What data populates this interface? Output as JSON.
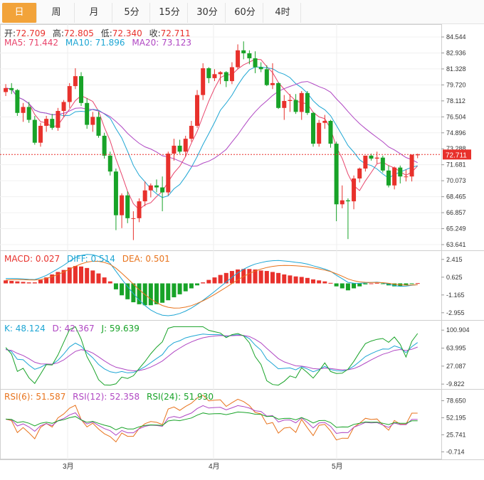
{
  "tabs": [
    "日",
    "周",
    "月",
    "5分",
    "15分",
    "30分",
    "60分",
    "4时"
  ],
  "active_tab": 0,
  "ohlc": {
    "open_label": "开:",
    "open": "72.709",
    "high_label": "高:",
    "high": "72.805",
    "low_label": "低:",
    "low": "72.340",
    "close_label": "收:",
    "close": "72.711"
  },
  "ma": {
    "ma5": "MA5: 71.442",
    "ma10": "MA10: 71.896",
    "ma20": "MA20: 73.123"
  },
  "macd_legend": {
    "macd": "MACD: 0.027",
    "diff": "DIFF: 0.514",
    "dea": "DEA: 0.501"
  },
  "kdj_legend": {
    "k": "K: 48.124",
    "d": "D: 42.367",
    "j": "J: 59.639"
  },
  "rsi_legend": {
    "r6": "RSI(6): 51.587",
    "r12": "RSI(12): 52.358",
    "r24": "RSI(24): 51.930"
  },
  "colors": {
    "up": "#e8312c",
    "down": "#18a328",
    "ma5": "#e8456c",
    "ma10": "#1ea6d4",
    "ma20": "#b047c3",
    "accent": "#f2a33a"
  },
  "chart_data": [
    {
      "type": "candlestick",
      "ylim": [
        63.641,
        84.544
      ],
      "y_ticks": [
        "84.544",
        "82.936",
        "81.328",
        "79.720",
        "78.112",
        "76.504",
        "74.896",
        "73.288",
        "71.681",
        "70.073",
        "68.465",
        "66.857",
        "65.249",
        "63.641"
      ],
      "x_labels": [
        "3月",
        "4月",
        "5月"
      ],
      "current_price": "72.711",
      "candles": [
        [
          79.0,
          79.8,
          78.6,
          79.4
        ],
        [
          79.4,
          79.9,
          78.8,
          79.2
        ],
        [
          79.2,
          79.3,
          76.6,
          76.9
        ],
        [
          76.9,
          77.9,
          76.0,
          77.5
        ],
        [
          77.5,
          78.0,
          75.9,
          76.2
        ],
        [
          76.2,
          76.6,
          73.7,
          73.9
        ],
        [
          73.9,
          75.9,
          73.5,
          75.6
        ],
        [
          75.6,
          76.6,
          75.0,
          76.3
        ],
        [
          76.3,
          76.8,
          75.2,
          75.4
        ],
        [
          75.4,
          77.4,
          75.1,
          77.1
        ],
        [
          77.1,
          78.2,
          76.5,
          78.0
        ],
        [
          78.0,
          79.9,
          77.4,
          79.6
        ],
        [
          79.6,
          81.4,
          79.3,
          80.6
        ],
        [
          80.6,
          81.0,
          77.6,
          77.9
        ],
        [
          77.9,
          78.4,
          75.3,
          75.7
        ],
        [
          75.7,
          77.0,
          75.0,
          76.5
        ],
        [
          76.5,
          77.0,
          74.4,
          74.6
        ],
        [
          74.6,
          74.9,
          72.3,
          72.6
        ],
        [
          72.6,
          73.0,
          70.6,
          71.0
        ],
        [
          71.0,
          71.3,
          65.1,
          66.6
        ],
        [
          66.6,
          68.8,
          65.3,
          68.6
        ],
        [
          68.6,
          69.0,
          65.8,
          66.3
        ],
        [
          66.3,
          67.0,
          64.1,
          66.3
        ],
        [
          66.3,
          68.3,
          65.9,
          68.0
        ],
        [
          68.0,
          70.0,
          67.5,
          69.1
        ],
        [
          69.1,
          69.8,
          68.4,
          69.6
        ],
        [
          69.6,
          70.2,
          68.9,
          69.4
        ],
        [
          69.4,
          70.5,
          67.0,
          68.9
        ],
        [
          68.9,
          73.0,
          68.6,
          72.8
        ],
        [
          72.8,
          74.3,
          72.1,
          73.6
        ],
        [
          73.6,
          74.2,
          72.8,
          73.0
        ],
        [
          73.0,
          74.6,
          72.5,
          74.3
        ],
        [
          74.3,
          76.1,
          74.0,
          75.6
        ],
        [
          75.6,
          79.2,
          75.4,
          78.7
        ],
        [
          78.7,
          81.9,
          78.2,
          81.4
        ],
        [
          81.4,
          81.5,
          79.9,
          80.4
        ],
        [
          80.4,
          81.3,
          80.1,
          80.8
        ],
        [
          80.8,
          81.1,
          79.8,
          81.0
        ],
        [
          81.0,
          81.1,
          79.5,
          80.1
        ],
        [
          80.1,
          82.0,
          79.8,
          81.5
        ],
        [
          81.5,
          83.8,
          81.3,
          83.2
        ],
        [
          83.2,
          84.1,
          82.3,
          82.9
        ],
        [
          82.9,
          83.2,
          81.8,
          82.4
        ],
        [
          82.4,
          83.1,
          80.9,
          81.5
        ],
        [
          81.5,
          82.0,
          81.0,
          81.3
        ],
        [
          81.3,
          81.7,
          79.6,
          79.7
        ],
        [
          79.7,
          81.9,
          79.3,
          79.9
        ],
        [
          79.9,
          80.0,
          77.3,
          77.4
        ],
        [
          77.4,
          78.7,
          76.2,
          78.1
        ],
        [
          78.1,
          78.8,
          77.0,
          78.2
        ],
        [
          78.2,
          78.8,
          76.8,
          77.0
        ],
        [
          77.0,
          79.1,
          76.2,
          78.9
        ],
        [
          78.9,
          79.1,
          76.7,
          76.9
        ],
        [
          76.9,
          77.0,
          73.5,
          73.8
        ],
        [
          73.8,
          76.2,
          73.5,
          75.9
        ],
        [
          75.9,
          76.7,
          75.3,
          76.1
        ],
        [
          76.1,
          76.2,
          73.4,
          73.8
        ],
        [
          73.8,
          74.0,
          66.0,
          67.7
        ],
        [
          67.7,
          69.6,
          67.3,
          68.1
        ],
        [
          68.1,
          68.3,
          64.2,
          68.0
        ],
        [
          68.0,
          70.6,
          67.2,
          70.3
        ],
        [
          70.3,
          71.4,
          69.9,
          71.3
        ],
        [
          71.3,
          72.5,
          71.0,
          72.6
        ],
        [
          72.6,
          72.8,
          72.1,
          72.3
        ],
        [
          72.3,
          73.0,
          71.8,
          72.4
        ],
        [
          72.4,
          72.6,
          70.9,
          71.1
        ],
        [
          71.1,
          71.6,
          69.4,
          69.6
        ],
        [
          69.6,
          71.5,
          69.2,
          71.4
        ],
        [
          71.4,
          71.6,
          69.8,
          70.5
        ],
        [
          70.5,
          71.2,
          70.0,
          70.5
        ],
        [
          70.5,
          72.7,
          70.0,
          72.7
        ],
        [
          72.709,
          72.805,
          72.34,
          72.711
        ]
      ]
    },
    {
      "type": "bar",
      "name": "MACD",
      "ylim": [
        -3.4,
        2.9
      ],
      "y_ticks": [
        "2.415",
        "0.625",
        "-1.165",
        "-2.955"
      ],
      "values": [
        0.3,
        0.25,
        0.2,
        0.15,
        0.1,
        0.1,
        0.35,
        0.6,
        0.9,
        1.15,
        1.35,
        1.6,
        1.75,
        1.7,
        1.55,
        1.3,
        1.0,
        0.6,
        0.2,
        -0.6,
        -1.2,
        -1.6,
        -1.9,
        -2.1,
        -2.2,
        -2.2,
        -2.1,
        -1.95,
        -1.7,
        -1.4,
        -1.1,
        -0.8,
        -0.5,
        -0.2,
        0.1,
        0.35,
        0.6,
        0.85,
        1.05,
        1.25,
        1.4,
        1.45,
        1.45,
        1.4,
        1.3,
        1.25,
        1.15,
        1.05,
        0.9,
        0.8,
        0.7,
        0.65,
        0.55,
        0.4,
        0.3,
        0.2,
        0.05,
        -0.3,
        -0.5,
        -0.7,
        -0.5,
        -0.3,
        -0.1,
        0.0,
        0.05,
        -0.05,
        -0.2,
        -0.3,
        -0.3,
        -0.2,
        -0.05,
        0.027
      ]
    },
    {
      "type": "line",
      "name": "KDJ",
      "ylim": [
        -14,
        110
      ],
      "y_ticks": [
        "100.904",
        "63.995",
        "27.087",
        "-9.822"
      ]
    },
    {
      "type": "line",
      "name": "RSI",
      "ylim": [
        -8,
        88
      ],
      "y_ticks": [
        "78.650",
        "52.195",
        "25.741",
        "-0.714"
      ]
    }
  ]
}
